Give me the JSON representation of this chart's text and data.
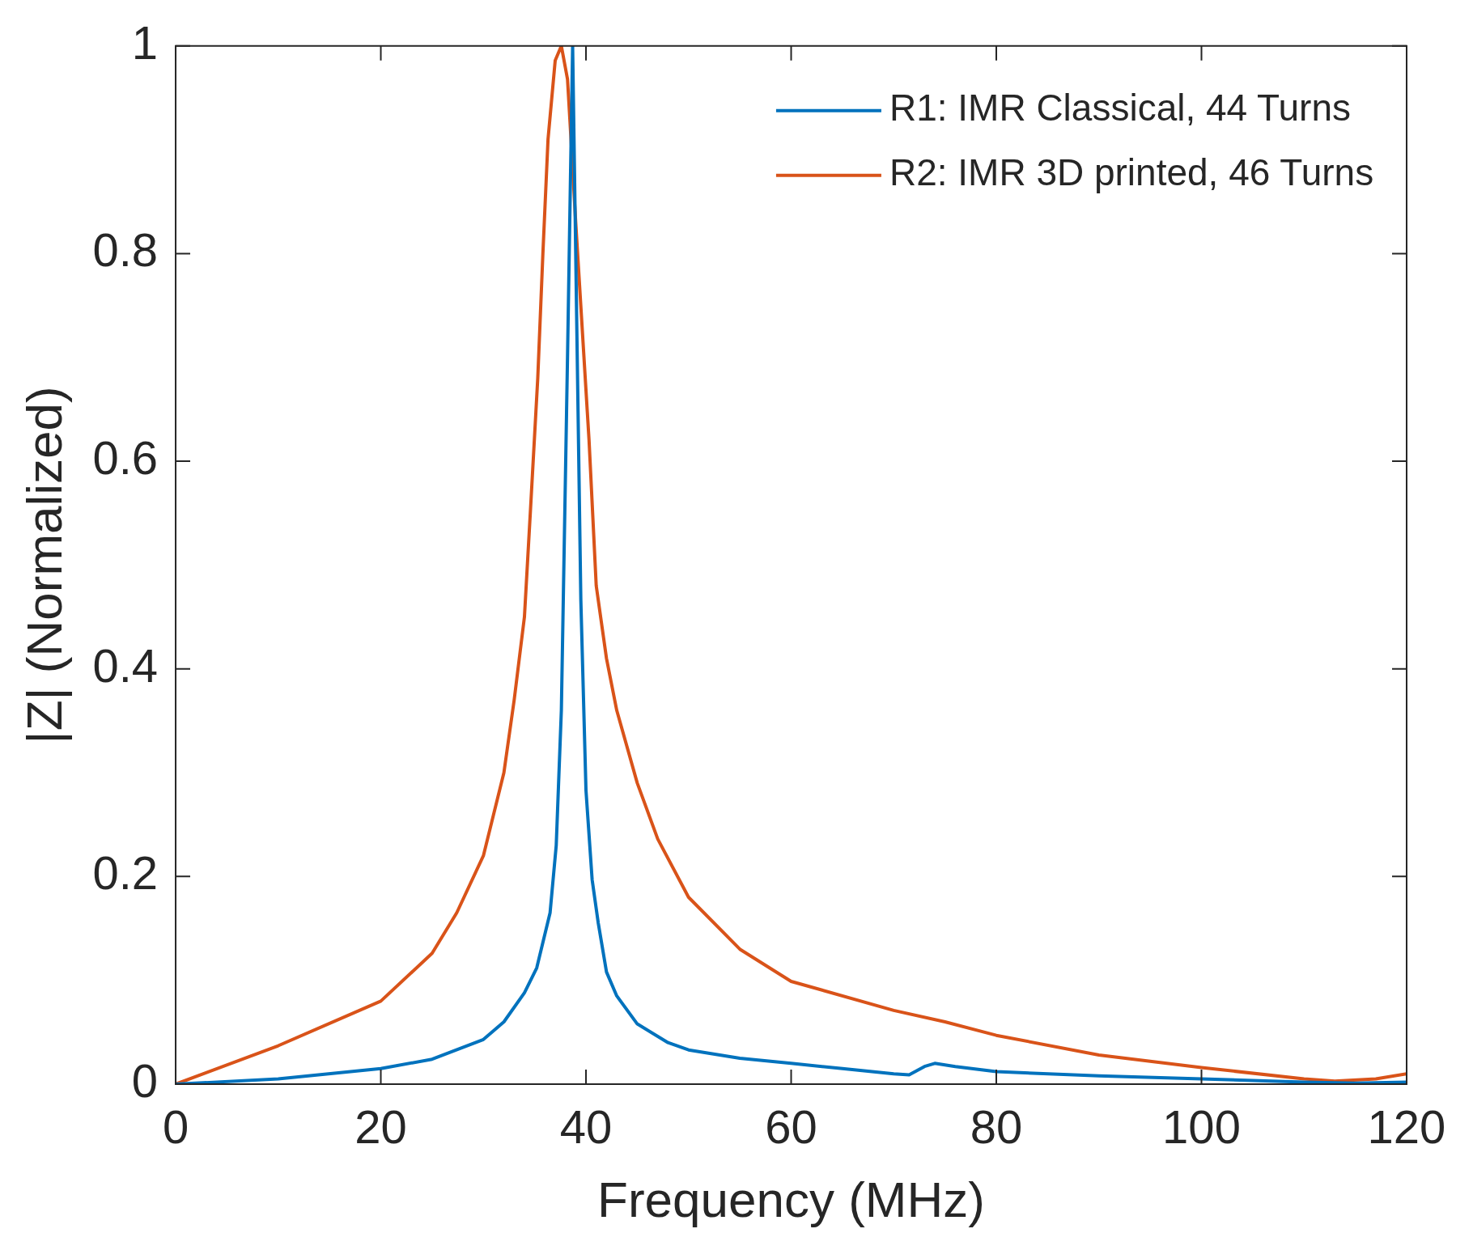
{
  "chart_data": {
    "type": "line",
    "xlabel": "Frequency (MHz)",
    "ylabel": "|Z| (Normalized)",
    "xlim": [
      0,
      120
    ],
    "xticks": [
      0,
      20,
      40,
      60,
      80,
      100,
      120
    ],
    "ylim": [
      0,
      1
    ],
    "yticks": [
      0,
      0.2,
      0.4,
      0.6,
      0.8,
      1
    ],
    "legend": "top right",
    "grid": false,
    "marker": "none",
    "line_style": "solid",
    "series": [
      {
        "name": "R1: IMR Classical, 44 Turns",
        "color": "#0072bd",
        "x": [
          0,
          10,
          20,
          25,
          30,
          32,
          34,
          35.2,
          36.5,
          37.1,
          37.6,
          38.2,
          38.7,
          39.5,
          40,
          40.6,
          41.2,
          42,
          43,
          45,
          48,
          50,
          55,
          60,
          65,
          70,
          71.5,
          73,
          74,
          76,
          80,
          90,
          100,
          110,
          115,
          120
        ],
        "values": [
          0,
          0.005,
          0.015,
          0.024,
          0.043,
          0.06,
          0.088,
          0.112,
          0.165,
          0.23,
          0.36,
          0.7,
          1,
          0.466,
          0.283,
          0.197,
          0.155,
          0.108,
          0.085,
          0.058,
          0.04,
          0.033,
          0.025,
          0.02,
          0.015,
          0.01,
          0.009,
          0.017,
          0.02,
          0.017,
          0.012,
          0.008,
          0.005,
          0.002,
          0.001,
          0.002
        ]
      },
      {
        "name": "R2: IMR 3D printed, 46 Turns",
        "color": "#d95319",
        "x": [
          0,
          10,
          20,
          25,
          27.4,
          30,
          32,
          33,
          34,
          34.6,
          35.3,
          35.8,
          36.3,
          37,
          37.6,
          38.2,
          38.6,
          39,
          40.3,
          41,
          42,
          43,
          45,
          47,
          50,
          55,
          60,
          70,
          75,
          80,
          90,
          100,
          110,
          113,
          117,
          120
        ],
        "values": [
          0,
          0.037,
          0.08,
          0.126,
          0.165,
          0.22,
          0.3,
          0.37,
          0.45,
          0.555,
          0.68,
          0.8,
          0.91,
          0.986,
          1,
          0.968,
          0.9,
          0.83,
          0.62,
          0.48,
          0.41,
          0.36,
          0.29,
          0.236,
          0.18,
          0.13,
          0.099,
          0.071,
          0.06,
          0.047,
          0.028,
          0.016,
          0.005,
          0.003,
          0.005,
          0.01
        ]
      }
    ]
  }
}
